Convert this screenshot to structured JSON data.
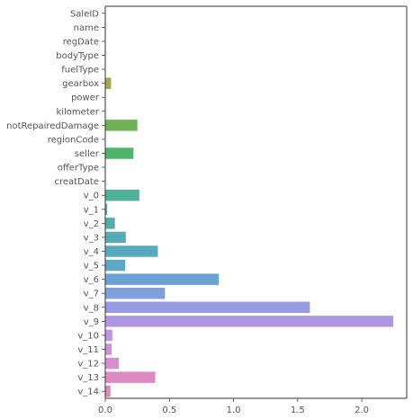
{
  "chart_data": {
    "type": "bar",
    "orientation": "horizontal",
    "title": "",
    "xlabel": "",
    "ylabel": "",
    "xlim": [
      0,
      2.35
    ],
    "xticks": [
      0.0,
      0.5,
      1.0,
      1.5,
      2.0
    ],
    "xtick_labels": [
      "0.0",
      "0.5",
      "1.0",
      "1.5",
      "2.0"
    ],
    "grid": false,
    "categories": [
      "SaleID",
      "name",
      "regDate",
      "bodyType",
      "fuelType",
      "gearbox",
      "power",
      "kilometer",
      "notRepairedDamage",
      "regionCode",
      "seller",
      "offerType",
      "creatDate",
      "v_0",
      "v_1",
      "v_2",
      "v_3",
      "v_4",
      "v_5",
      "v_6",
      "v_7",
      "v_8",
      "v_9",
      "v_10",
      "v_11",
      "v_12",
      "v_13",
      "v_14"
    ],
    "values": [
      0,
      0,
      0,
      0,
      0,
      0.045,
      0,
      0,
      0.25,
      0,
      0.22,
      0,
      0,
      0.265,
      0.015,
      0.075,
      0.16,
      0.41,
      0.155,
      0.885,
      0.465,
      1.595,
      2.245,
      0.055,
      0.05,
      0.105,
      0.39,
      0.04
    ],
    "colors": [
      "#e1877e",
      "#de8d5e",
      "#cf9355",
      "#c09a53",
      "#b1a152",
      "#a3a653",
      "#95aa54",
      "#84ae55",
      "#6fb255",
      "#55b557",
      "#4eb56a",
      "#4fb37c",
      "#4fb28b",
      "#4fb199",
      "#52afa3",
      "#53adac",
      "#56acb5",
      "#58aabf",
      "#5ea7c9",
      "#6ba3d5",
      "#809fdd",
      "#989be1",
      "#ac97e5",
      "#c193e4",
      "#cf8fdb",
      "#d98ccf",
      "#df8ac1",
      "#e288b0"
    ]
  }
}
